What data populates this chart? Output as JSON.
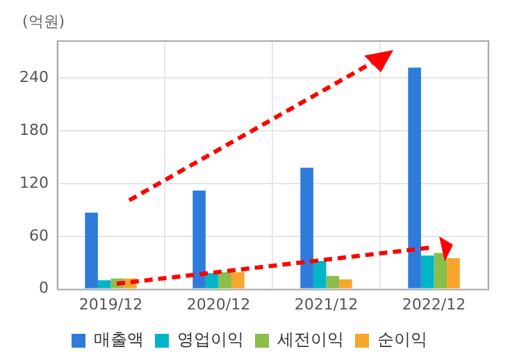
{
  "chart_data": {
    "type": "bar",
    "ylabel": "(억원)",
    "categories": [
      "2019/12",
      "2020/12",
      "2021/12",
      "2022/12"
    ],
    "series": [
      {
        "name": "매출액",
        "color": "#2f7bdc",
        "values": [
          87,
          112,
          138,
          252
        ]
      },
      {
        "name": "영업이익",
        "color": "#00b5c8",
        "values": [
          10,
          18,
          32,
          38
        ]
      },
      {
        "name": "세전이익",
        "color": "#8bbd4b",
        "values": [
          12,
          19,
          15,
          41
        ]
      },
      {
        "name": "순이익",
        "color": "#f7a62b",
        "values": [
          12,
          19,
          11,
          35
        ]
      }
    ],
    "ylim": [
      0,
      283
    ],
    "yticks": [
      0,
      60,
      120,
      180,
      240
    ],
    "grid": true,
    "legend": "bottom"
  }
}
